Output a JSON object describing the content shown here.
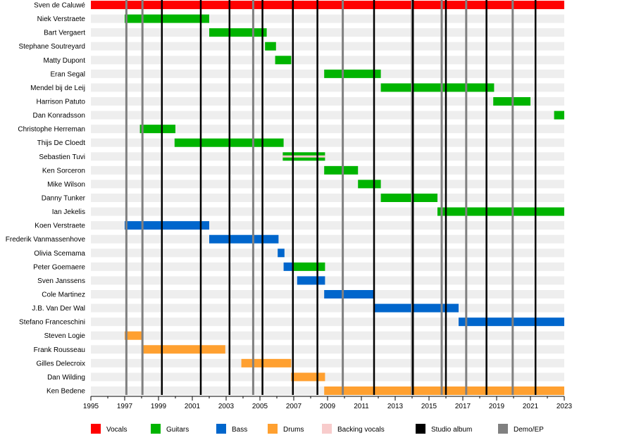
{
  "chart_data": {
    "type": "timeline",
    "title": "",
    "xlim": [
      1995,
      2023
    ],
    "x_ticks": [
      1995,
      1997,
      1999,
      2001,
      2003,
      2005,
      2007,
      2009,
      2011,
      2013,
      2015,
      2017,
      2019,
      2021,
      2023
    ],
    "colors": {
      "Vocals": "#ff0000",
      "Guitars": "#00b400",
      "Bass": "#0066cc",
      "Drums": "#ffa030",
      "Backing vocals": "#f8cccc",
      "Studio album": "#000000",
      "Demo/EP": "#808080"
    },
    "legend": [
      "Vocals",
      "Guitars",
      "Bass",
      "Drums",
      "Backing vocals",
      "Studio album",
      "Demo/EP"
    ],
    "legend_position": "bottom",
    "studio_albums": [
      1999.2,
      2001.5,
      2003.2,
      2005.15,
      2006.95,
      2008.4,
      2011.75,
      2014.05,
      2016.0,
      2018.4,
      2021.3
    ],
    "demos": [
      1997.1,
      1998.05,
      2004.6,
      2009.9,
      2014.0,
      2015.75,
      2017.2,
      2019.95
    ],
    "members": [
      {
        "name": "Sven de Caluwé",
        "periods": [
          {
            "role": "Vocals",
            "start": 1995,
            "end": 2023
          }
        ]
      },
      {
        "name": "Niek Verstraete",
        "periods": [
          {
            "role": "Guitars",
            "start": 1997,
            "end": 2002
          }
        ]
      },
      {
        "name": "Bart Vergaert",
        "periods": [
          {
            "role": "Guitars",
            "start": 2002,
            "end": 2005.4
          }
        ]
      },
      {
        "name": "Stephane Soutreyard",
        "periods": [
          {
            "role": "Guitars",
            "start": 2005.3,
            "end": 2005.95
          }
        ]
      },
      {
        "name": "Matty Dupont",
        "periods": [
          {
            "role": "Guitars",
            "start": 2005.9,
            "end": 2006.85
          }
        ]
      },
      {
        "name": "Eran Segal",
        "periods": [
          {
            "role": "Guitars",
            "start": 2008.8,
            "end": 2012.15
          }
        ]
      },
      {
        "name": "Mendel bij de Leij",
        "periods": [
          {
            "role": "Guitars",
            "start": 2012.15,
            "end": 2018.85
          }
        ]
      },
      {
        "name": "Harrison Patuto",
        "periods": [
          {
            "role": "Guitars",
            "start": 2018.8,
            "end": 2021
          }
        ]
      },
      {
        "name": "Dan Konradsson",
        "periods": [
          {
            "role": "Guitars",
            "start": 2022.4,
            "end": 2023
          }
        ]
      },
      {
        "name": "Christophe Herreman",
        "periods": [
          {
            "role": "Guitars",
            "start": 1997.9,
            "end": 2000
          }
        ]
      },
      {
        "name": "Thijs De Cloedt",
        "periods": [
          {
            "role": "Guitars",
            "start": 1999.95,
            "end": 2006.4
          }
        ]
      },
      {
        "name": "Sebastien Tuvi",
        "periods": [
          {
            "role": "Guitars",
            "start": 2006.35,
            "end": 2008.85,
            "secondary": "Backing vocals"
          }
        ]
      },
      {
        "name": "Ken Sorceron",
        "periods": [
          {
            "role": "Guitars",
            "start": 2008.8,
            "end": 2010.8
          }
        ]
      },
      {
        "name": "Mike Wilson",
        "periods": [
          {
            "role": "Guitars",
            "start": 2010.8,
            "end": 2012.15
          }
        ]
      },
      {
        "name": "Danny Tunker",
        "periods": [
          {
            "role": "Guitars",
            "start": 2012.15,
            "end": 2015.5
          }
        ]
      },
      {
        "name": "Ian Jekelis",
        "periods": [
          {
            "role": "Guitars",
            "start": 2015.5,
            "end": 2023
          }
        ]
      },
      {
        "name": "Koen Verstraete",
        "periods": [
          {
            "role": "Bass",
            "start": 1997,
            "end": 2002
          }
        ]
      },
      {
        "name": "Frederik Vanmassenhove",
        "periods": [
          {
            "role": "Bass",
            "start": 2002,
            "end": 2006.1
          }
        ]
      },
      {
        "name": "Olivia Scemama",
        "periods": [
          {
            "role": "Bass",
            "start": 2006.05,
            "end": 2006.45
          }
        ]
      },
      {
        "name": "Peter Goemaere",
        "periods": [
          {
            "role": "Bass",
            "start": 2006.4,
            "end": 2006.9
          },
          {
            "role": "Guitars",
            "start": 2006.9,
            "end": 2008.85
          }
        ]
      },
      {
        "name": "Sven Janssens",
        "periods": [
          {
            "role": "Bass",
            "start": 2007.2,
            "end": 2008.85
          }
        ]
      },
      {
        "name": "Cole Martinez",
        "periods": [
          {
            "role": "Bass",
            "start": 2008.8,
            "end": 2011.75
          }
        ]
      },
      {
        "name": "J.B. Van Der Wal",
        "periods": [
          {
            "role": "Bass",
            "start": 2011.75,
            "end": 2016.75
          }
        ]
      },
      {
        "name": "Stefano Franceschini",
        "periods": [
          {
            "role": "Bass",
            "start": 2016.75,
            "end": 2023
          }
        ]
      },
      {
        "name": "Steven Logie",
        "periods": [
          {
            "role": "Drums",
            "start": 1997,
            "end": 1998
          }
        ]
      },
      {
        "name": "Frank Rousseau",
        "periods": [
          {
            "role": "Drums",
            "start": 1998,
            "end": 2002.95
          }
        ]
      },
      {
        "name": "Gilles Delecroix",
        "periods": [
          {
            "role": "Drums",
            "start": 2003.9,
            "end": 2006.85
          }
        ]
      },
      {
        "name": "Dan Wilding",
        "periods": [
          {
            "role": "Drums",
            "start": 2006.85,
            "end": 2008.85
          }
        ]
      },
      {
        "name": "Ken Bedene",
        "periods": [
          {
            "role": "Drums",
            "start": 2008.8,
            "end": 2023
          }
        ]
      }
    ]
  }
}
